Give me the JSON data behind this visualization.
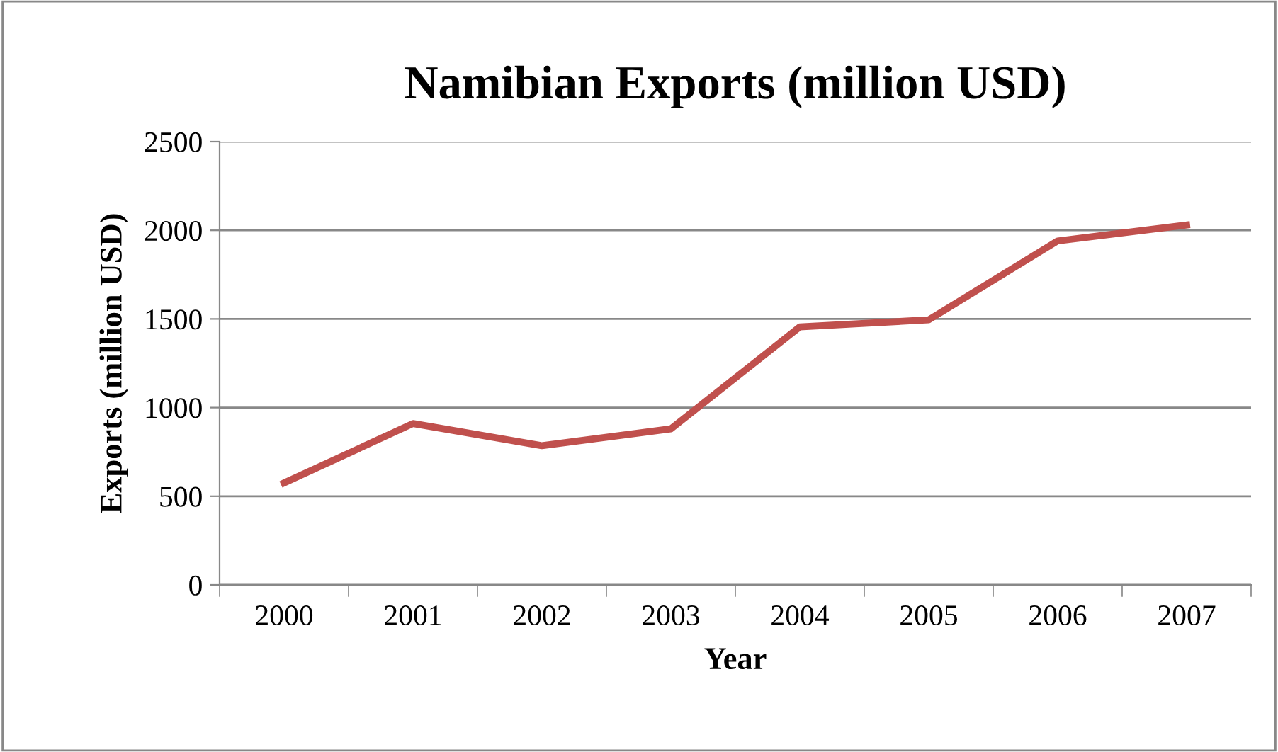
{
  "chart_data": {
    "type": "line",
    "title": "Namibian Exports (million USD)",
    "xlabel": "Year",
    "ylabel": "Exports (million USD)",
    "categories": [
      "2000",
      "2001",
      "2002",
      "2003",
      "2004",
      "2005",
      "2006",
      "2007"
    ],
    "series": [
      {
        "color": "#c0504d",
        "values": [
          575,
          910,
          785,
          880,
          1455,
          1495,
          1940,
          2030
        ]
      }
    ],
    "ylim": [
      0,
      2500
    ],
    "yticks": [
      0,
      500,
      1000,
      1500,
      2000,
      2500
    ],
    "grid": "y",
    "marker": "none",
    "line_style": "solid"
  }
}
